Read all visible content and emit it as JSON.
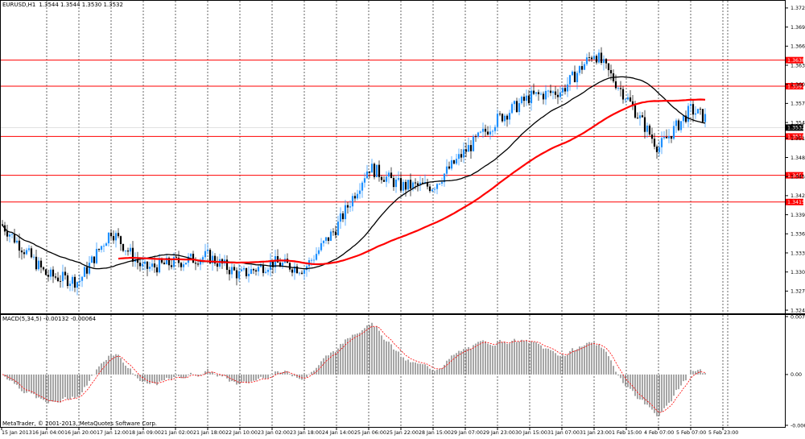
{
  "chart": {
    "header": {
      "symbol": "EURUSD,H1",
      "ohlc": "1.3544 1.3544 1.3530 1.3532"
    },
    "price_axis": {
      "ticks": [
        "1.3720",
        "1.3690",
        "1.3660",
        "1.3630",
        "1.3600",
        "1.3570",
        "1.3540",
        "1.3515",
        "1.3485",
        "1.3455",
        "1.3425",
        "1.3395",
        "1.3365",
        "1.3335",
        "1.3305",
        "1.3275",
        "1.3245"
      ],
      "current_price": "1.3532"
    },
    "levels": [
      {
        "label": "1.3638",
        "price": 1.3638
      },
      {
        "label": "1.3597",
        "price": 1.3597
      },
      {
        "label": "1.3518",
        "price": 1.3518
      },
      {
        "label": "1.3457",
        "price": 1.3457
      },
      {
        "label": "1.3415",
        "price": 1.3415
      }
    ],
    "time_axis": [
      "15 Jan 2013",
      "16 Jan 04:00",
      "16 Jan 20:00",
      "17 Jan 12:00",
      "18 Jan 09:00",
      "21 Jan 02:00",
      "21 Jan 18:00",
      "22 Jan 10:00",
      "23 Jan 02:00",
      "23 Jan 18:00",
      "24 Jan 14:00",
      "25 Jan 06:00",
      "25 Jan 22:00",
      "28 Jan 15:00",
      "29 Jan 07:00",
      "29 Jan 23:00",
      "30 Jan 15:00",
      "31 Jan 07:00",
      "31 Jan 23:00",
      "1 Feb 15:00",
      "4 Feb 07:00",
      "5 Feb 07:00",
      "5 Feb 23:00"
    ],
    "colors": {
      "grid": "#000000",
      "bull": "#1e90ff",
      "bear": "#000000",
      "ma_fast": "#000000",
      "ma_slow": "#ff0000",
      "level_line": "#ff0000",
      "macd_hist": "#808080",
      "macd_signal": "#ff0000",
      "current": "#000000"
    }
  },
  "macd": {
    "label": "MACD(5,34,5) -0.00132 -0.00064",
    "ticks": [
      "0.00762",
      "0.00",
      "-0.00668"
    ]
  },
  "footer": {
    "copyright": "MetaTrader, © 2001-2013, MetaQuotes Software Corp."
  },
  "chart_data": {
    "type": "candlestick",
    "instrument": "EURUSD",
    "timeframe": "H1",
    "y_range": [
      1.324,
      1.373
    ],
    "key_points": [
      {
        "x": "15 Jan 2013",
        "close": 1.338
      },
      {
        "x": "16 Jan 04:00",
        "close": 1.33
      },
      {
        "x": "16 Jan 20:00",
        "close": 1.329
      },
      {
        "x": "17 Jan 12:00",
        "close": 1.337
      },
      {
        "x": "18 Jan 09:00",
        "close": 1.331
      },
      {
        "x": "21 Jan 02:00",
        "close": 1.332
      },
      {
        "x": "21 Jan 18:00",
        "close": 1.333
      },
      {
        "x": "22 Jan 10:00",
        "close": 1.33
      },
      {
        "x": "23 Jan 02:00",
        "close": 1.332
      },
      {
        "x": "23 Jan 18:00",
        "close": 1.331
      },
      {
        "x": "24 Jan 14:00",
        "close": 1.3375
      },
      {
        "x": "25 Jan 06:00",
        "close": 1.347
      },
      {
        "x": "25 Jan 22:00",
        "close": 1.344
      },
      {
        "x": "28 Jan 15:00",
        "close": 1.344
      },
      {
        "x": "29 Jan 07:00",
        "close": 1.3495
      },
      {
        "x": "29 Jan 23:00",
        "close": 1.3545
      },
      {
        "x": "30 Jan 15:00",
        "close": 1.358
      },
      {
        "x": "31 Jan 07:00",
        "close": 1.359
      },
      {
        "x": "31 Jan 23:00",
        "close": 1.365
      },
      {
        "x": "1 Feb 15:00",
        "close": 1.358
      },
      {
        "x": "4 Feb 07:00",
        "close": 1.35
      },
      {
        "x": "5 Feb 07:00",
        "close": 1.356
      },
      {
        "x": "5 Feb 23:00",
        "close": 1.3532
      }
    ],
    "macd_range": [
      -0.00668,
      0.00762
    ]
  }
}
